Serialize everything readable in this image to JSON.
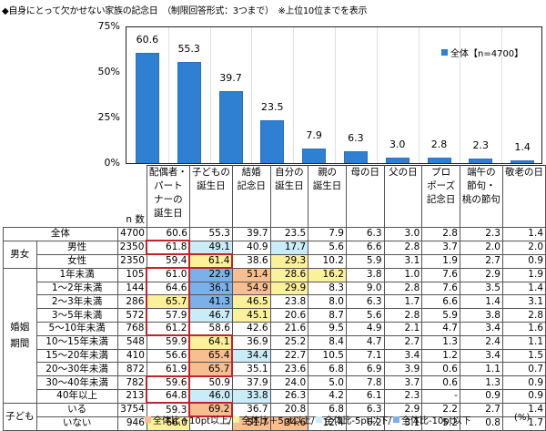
{
  "title": "◆自身にとって欠かせない家族の記念日　（制限回答形式：3つまで）　※上位10位までを表示",
  "chart_data": {
    "type": "bar",
    "title": "自身にとって欠かせない家族の記念日（制限回答形式：3つまで）※上位10位までを表示",
    "categories": [
      "配偶者・パートナーの誕生日",
      "子どもの誕生日",
      "結婚記念日",
      "自分の誕生日",
      "親の誕生日",
      "母の日",
      "父の日",
      "プロポーズ記念日",
      "端午の節句・桃の節句",
      "敬老の日"
    ],
    "series": [
      {
        "name": "全体【n=4700】",
        "values": [
          60.6,
          55.3,
          39.7,
          23.5,
          7.9,
          6.3,
          3.0,
          2.8,
          2.3,
          1.4
        ]
      }
    ],
    "yticks": [
      "75%",
      "50%",
      "25%",
      "0%"
    ],
    "ylim": [
      0,
      75
    ],
    "legend_position": "top-right",
    "grid": false
  },
  "legend": {
    "label": "全体【n=4700】",
    "color": "#2f7fd2"
  },
  "yticks": [
    "75%",
    "50%",
    "25%",
    "0%"
  ],
  "bars": [
    {
      "label": "60.6",
      "value": 60.6
    },
    {
      "label": "55.3",
      "value": 55.3
    },
    {
      "label": "39.7",
      "value": 39.7
    },
    {
      "label": "23.5",
      "value": 23.5
    },
    {
      "label": "7.9",
      "value": 7.9
    },
    {
      "label": "6.3",
      "value": 6.3
    },
    {
      "label": "3.0",
      "value": 3.0
    },
    {
      "label": "2.8",
      "value": 2.8
    },
    {
      "label": "2.3",
      "value": 2.3
    },
    {
      "label": "1.4",
      "value": 1.4
    }
  ],
  "table": {
    "n_label": "n 数",
    "headers": [
      [
        "配偶者・",
        "パート",
        "ナーの",
        "誕生日"
      ],
      [
        "子どもの",
        "誕生日"
      ],
      [
        "結婚",
        "記念日"
      ],
      [
        "自分の",
        "誕生日"
      ],
      [
        "親の",
        "誕生日"
      ],
      [
        "母の日"
      ],
      [
        "父の日"
      ],
      [
        "プロ",
        "ポーズ",
        "記念日"
      ],
      [
        "端午の",
        "節句・",
        "桃の節句"
      ],
      [
        "敬老の日"
      ]
    ],
    "groups": {
      "gender": "男女",
      "marriage": "婚姻期間",
      "marriage_l1": "婚姻",
      "marriage_l2": "期間",
      "children": "子ども"
    },
    "rows": [
      {
        "label": "全体",
        "n": "4700",
        "values": [
          "60.6",
          "55.3",
          "39.7",
          "23.5",
          "7.9",
          "6.3",
          "3.0",
          "2.8",
          "2.3",
          "1.4"
        ],
        "colors": [
          "",
          "",
          "",
          "",
          "",
          "",
          "",
          "",
          "",
          ""
        ]
      },
      {
        "label": "男性",
        "n": "2350",
        "values": [
          "61.8",
          "49.1",
          "40.9",
          "17.7",
          "5.6",
          "6.6",
          "2.8",
          "3.7",
          "2.0",
          "2.0"
        ],
        "colors": [
          "",
          "m5",
          "",
          "m5",
          "",
          "",
          "",
          "",
          "",
          ""
        ]
      },
      {
        "label": "女性",
        "n": "2350",
        "values": [
          "59.4",
          "61.4",
          "38.6",
          "29.3",
          "10.2",
          "5.9",
          "3.1",
          "1.9",
          "2.7",
          "0.9"
        ],
        "colors": [
          "",
          "p5",
          "",
          "p5",
          "",
          "",
          "",
          "",
          "",
          ""
        ]
      },
      {
        "label": "1年未満",
        "n": "105",
        "values": [
          "61.0",
          "22.9",
          "51.4",
          "28.6",
          "16.2",
          "3.8",
          "1.0",
          "7.6",
          "2.9",
          "1.9"
        ],
        "colors": [
          "",
          "m10",
          "p10",
          "p5",
          "p5",
          "",
          "",
          "",
          "",
          ""
        ]
      },
      {
        "label": "1～2年未満",
        "n": "144",
        "values": [
          "64.6",
          "36.1",
          "54.9",
          "29.9",
          "8.3",
          "9.0",
          "2.8",
          "7.6",
          "3.5",
          "1.4"
        ],
        "colors": [
          "",
          "m10",
          "p10",
          "p5",
          "",
          "",
          "",
          "",
          "",
          ""
        ]
      },
      {
        "label": "2～3年未満",
        "n": "286",
        "values": [
          "65.7",
          "41.3",
          "46.5",
          "23.8",
          "8.0",
          "6.3",
          "1.7",
          "6.6",
          "1.4",
          "3.1"
        ],
        "colors": [
          "p5",
          "m10",
          "p5",
          "",
          "",
          "",
          "",
          "",
          "",
          ""
        ]
      },
      {
        "label": "3～5年未満",
        "n": "572",
        "values": [
          "57.9",
          "46.7",
          "45.1",
          "20.6",
          "8.7",
          "5.6",
          "2.8",
          "5.9",
          "3.8",
          "2.8"
        ],
        "colors": [
          "",
          "m5",
          "p5",
          "",
          "",
          "",
          "",
          "",
          "",
          ""
        ]
      },
      {
        "label": "5～10年未満",
        "n": "768",
        "values": [
          "61.2",
          "58.6",
          "42.6",
          "21.6",
          "9.5",
          "4.9",
          "2.1",
          "4.7",
          "3.4",
          "1.6"
        ],
        "colors": [
          "",
          "",
          "",
          "",
          "",
          "",
          "",
          "",
          "",
          ""
        ]
      },
      {
        "label": "10～15年未満",
        "n": "548",
        "values": [
          "59.9",
          "64.1",
          "36.9",
          "25.2",
          "8.4",
          "4.7",
          "2.7",
          "1.3",
          "2.4",
          "1.1"
        ],
        "colors": [
          "",
          "p5",
          "",
          "",
          "",
          "",
          "",
          "",
          "",
          ""
        ]
      },
      {
        "label": "15～20年未満",
        "n": "410",
        "values": [
          "56.6",
          "65.4",
          "34.4",
          "22.7",
          "10.5",
          "7.1",
          "3.4",
          "1.2",
          "3.4",
          "1.5"
        ],
        "colors": [
          "",
          "p10",
          "m5",
          "",
          "",
          "",
          "",
          "",
          "",
          ""
        ]
      },
      {
        "label": "20～30年未満",
        "n": "872",
        "values": [
          "61.9",
          "65.7",
          "35.1",
          "23.6",
          "6.8",
          "6.9",
          "3.9",
          "0.6",
          "1.1",
          "0.7"
        ],
        "colors": [
          "",
          "p10",
          "",
          "",
          "",
          "",
          "",
          "",
          "",
          ""
        ]
      },
      {
        "label": "30～40年未満",
        "n": "782",
        "values": [
          "59.6",
          "50.9",
          "37.9",
          "24.0",
          "5.0",
          "7.8",
          "3.7",
          "0.6",
          "1.3",
          "0.9"
        ],
        "colors": [
          "",
          "",
          "",
          "",
          "",
          "",
          "",
          "",
          "",
          ""
        ]
      },
      {
        "label": "40年以上",
        "n": "213",
        "values": [
          "64.8",
          "46.0",
          "33.8",
          "26.3",
          "4.2",
          "6.1",
          "2.3",
          "-",
          "0.9",
          "0.9"
        ],
        "colors": [
          "",
          "m5",
          "m5",
          "",
          "",
          "",
          "",
          "",
          "",
          ""
        ]
      },
      {
        "label": "いる",
        "n": "3754",
        "values": [
          "59.3",
          "69.2",
          "36.7",
          "20.8",
          "6.8",
          "6.3",
          "2.9",
          "2.2",
          "2.7",
          "1.4"
        ],
        "colors": [
          "",
          "p10",
          "",
          "",
          "",
          "",
          "",
          "",
          "",
          ""
        ]
      },
      {
        "label": "いない",
        "n": "946",
        "values": [
          "66.0",
          "-",
          "51.7",
          "34.6",
          "12.4",
          "6.2",
          "3.1",
          "5.2",
          "0.8",
          "1.7"
        ],
        "colors": [
          "p5",
          "",
          "p10",
          "p10",
          "",
          "",
          "",
          "",
          "",
          ""
        ]
      }
    ]
  },
  "footer": {
    "items": [
      {
        "label": "全体比＋10pt以上/",
        "color": "#f7be90"
      },
      {
        "label": "全体比＋5pt以上/",
        "color": "#fbf19b"
      },
      {
        "label": "全体比-5pt以下/",
        "color": "#c9ecf8"
      },
      {
        "label": "全体比-10pt以下",
        "color": "#7ab1ea"
      }
    ],
    "unit": "(%)"
  }
}
